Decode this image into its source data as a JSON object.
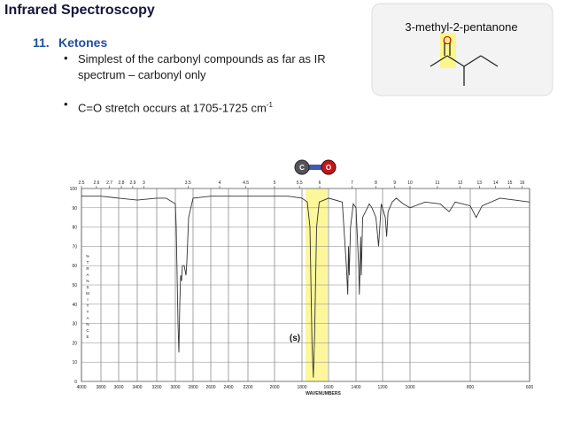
{
  "slide": {
    "title": "Infrared Spectroscopy",
    "section": {
      "number": "11.",
      "title": "Ketones"
    },
    "bullets": [
      {
        "text": "Simplest of the carbonyl compounds as far as IR spectrum – carbonyl only"
      },
      {
        "text": "C=O stretch occurs at 1705-1725 cm",
        "sup": "-1"
      }
    ],
    "molecule": {
      "name": "3-methyl-2-pentanone",
      "atom": "O"
    },
    "icon": [
      "C",
      "O"
    ]
  },
  "chart_data": {
    "type": "line",
    "color": "#333333",
    "grid": true,
    "x": [
      4000,
      3800,
      3600,
      3400,
      3200,
      3100,
      3000,
      2990,
      2970,
      2960,
      2950,
      2940,
      2930,
      2920,
      2900,
      2880,
      2870,
      2850,
      2800,
      2600,
      2400,
      2200,
      2000,
      1900,
      1800,
      1760,
      1740,
      1725,
      1715,
      1705,
      1690,
      1670,
      1600,
      1500,
      1470,
      1460,
      1455,
      1450,
      1440,
      1420,
      1400,
      1380,
      1375,
      1365,
      1360,
      1350,
      1300,
      1280,
      1250,
      1230,
      1210,
      1180,
      1170,
      1160,
      1130,
      1100,
      1050,
      1000,
      950,
      900,
      870,
      850,
      800,
      780,
      760,
      700,
      650,
      600
    ],
    "series": [
      {
        "name": "3-methyl-2-pentanone",
        "values": [
          96,
          96,
          95,
          94,
          95,
          95,
          92,
          80,
          30,
          15,
          40,
          55,
          52,
          60,
          60,
          55,
          62,
          85,
          95,
          96,
          96,
          96,
          96,
          96,
          95,
          93,
          80,
          20,
          2,
          25,
          80,
          93,
          95,
          93,
          60,
          45,
          70,
          55,
          80,
          92,
          90,
          60,
          45,
          75,
          55,
          85,
          92,
          90,
          85,
          70,
          92,
          85,
          75,
          88,
          93,
          95,
          92,
          90,
          93,
          92,
          88,
          93,
          91,
          85,
          91,
          95,
          94,
          93
        ]
      }
    ],
    "xlim": [
      4000,
      600
    ],
    "ylim": [
      0,
      100
    ],
    "xticks": [
      4000,
      3800,
      3600,
      3400,
      3200,
      3000,
      2800,
      2600,
      2400,
      2200,
      2000,
      1800,
      1600,
      1400,
      1200,
      1000,
      800,
      600
    ],
    "yticks": [
      0,
      10,
      20,
      30,
      40,
      50,
      60,
      70,
      80,
      90,
      100
    ],
    "x2ticks": [
      2.5,
      2.6,
      2.7,
      2.8,
      2.9,
      3,
      3.5,
      4,
      4.5,
      5,
      5.5,
      6,
      7,
      8,
      9,
      10,
      11,
      12,
      13,
      14,
      15,
      16
    ],
    "xlabel": "WAVENUMBERS",
    "ylabel": "%TRANSMITTANCE",
    "annotation": "(s)"
  }
}
